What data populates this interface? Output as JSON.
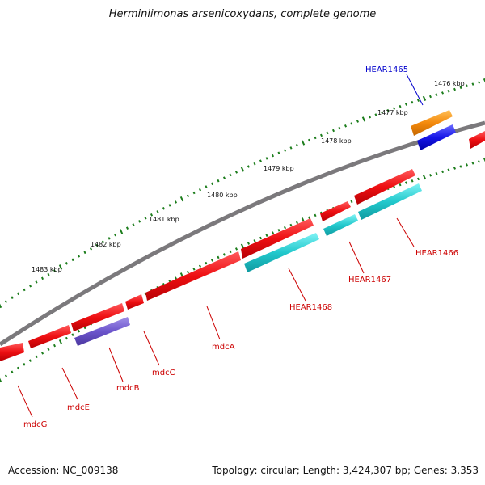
{
  "title": "Herminiimonas arsenicoxydans, complete genome",
  "footer": {
    "accession": "Accession: NC_009138",
    "stats": "Topology: circular; Length: 3,424,307 bp; Genes: 3,353"
  },
  "colors": {
    "backbone": "#7b797c",
    "ticks": "#1c7d1c",
    "gene_red": "#ee0f12",
    "gene_cyan": "#22c8cc",
    "gene_purple": "#6c55cc",
    "gene_orange": "#f48a0c",
    "gene_blue": "#1616e8",
    "label_red": "#cc0000",
    "label_blue": "#0000cc"
  },
  "scale": {
    "labels": [
      "1476 kbp",
      "1477 kbp",
      "1478 kbp",
      "1479 kbp",
      "1480 kbp",
      "1481 kbp",
      "1482 kbp",
      "1483 kbp"
    ]
  },
  "genes": [
    {
      "id": "hear1465",
      "label": "HEAR1465",
      "label_color": "blue"
    },
    {
      "id": "hear1466",
      "label": "HEAR1466",
      "label_color": "red"
    },
    {
      "id": "hear1467",
      "label": "HEAR1467",
      "label_color": "red"
    },
    {
      "id": "hear1468",
      "label": "HEAR1468",
      "label_color": "red"
    },
    {
      "id": "mdcA",
      "label": "mdcA",
      "label_color": "red"
    },
    {
      "id": "mdcC",
      "label": "mdcC",
      "label_color": "red"
    },
    {
      "id": "mdcB",
      "label": "mdcB",
      "label_color": "red"
    },
    {
      "id": "mdcE",
      "label": "mdcE",
      "label_color": "red"
    },
    {
      "id": "mdcG",
      "label": "mdcG",
      "label_color": "red"
    }
  ]
}
